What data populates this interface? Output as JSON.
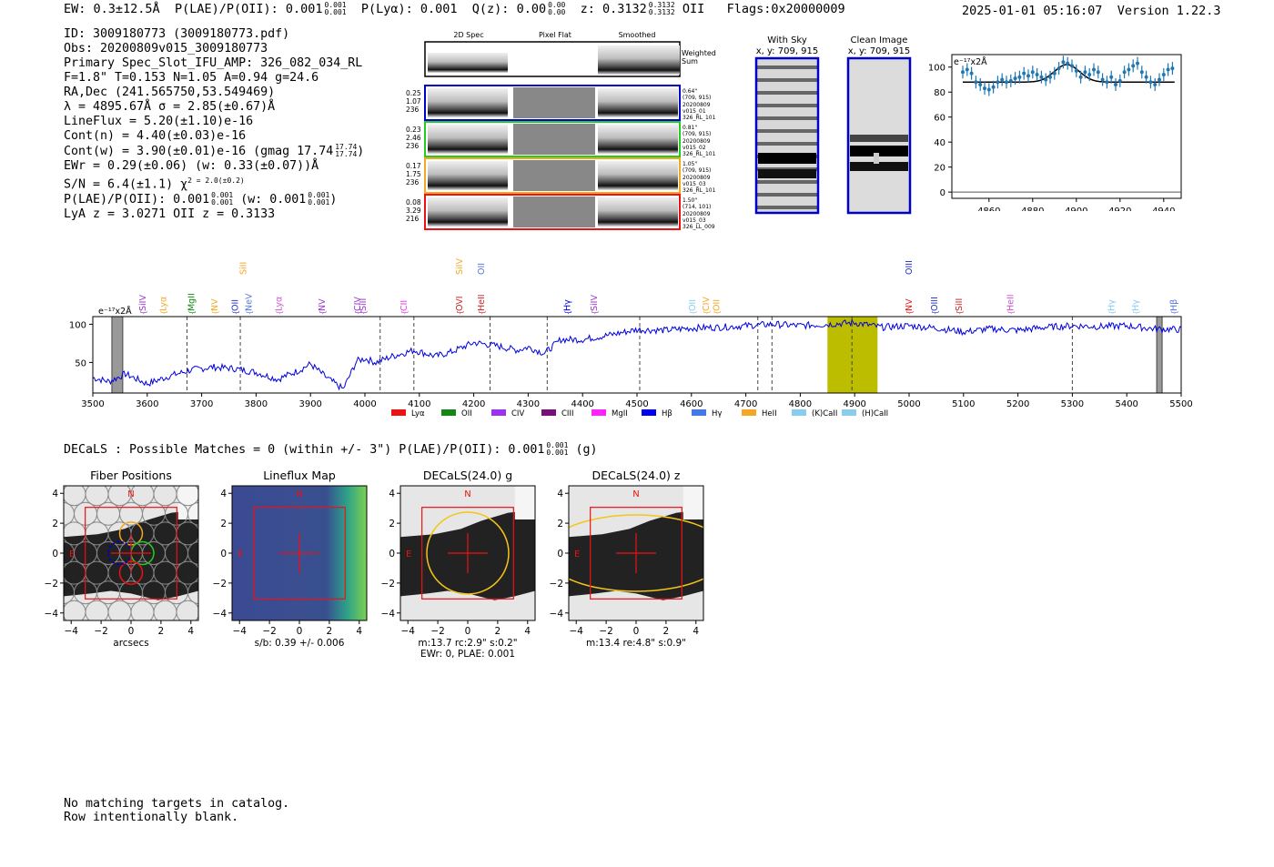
{
  "header": {
    "ew": "EW: 0.3±12.5Å",
    "plae_label": "P(LAE)/P(OII): 0.001",
    "plae_hi": "0.001",
    "plae_lo": "0.001",
    "plya_label": "P(Lyα): 0.001",
    "qz_label": "Q(z): 0.00",
    "qz_hi": "0.00",
    "qz_lo": "0.00",
    "z_label": "z: 0.3132",
    "z_hi": "0.3132",
    "z_lo": "0.3132",
    "z_type": "OII",
    "flags": "Flags:0x20000009",
    "timestamp": "2025-01-01 05:16:07",
    "version": "Version 1.22.3"
  },
  "info": {
    "id": "ID: 3009180773 (3009180773.pdf)",
    "obs": "Obs: 20200809v015_3009180773",
    "primary": "Primary Spec_Slot_IFU_AMP: 326_082_034_RL",
    "fit": "F=1.8\"  T=0.153  N=1.05  A=0.94  g=24.6",
    "radec": "RA,Dec (241.565750,53.549469)",
    "lambda": "λ = 4895.67Å  σ = 2.85(±0.67)Å",
    "lineflux": "LineFlux = 5.20(±1.10)e-16",
    "contn": "Cont(n) = 4.40(±0.03)e-16",
    "contw": "Cont(w) = 3.90(±0.01)e-16 (gmag 17.74",
    "contw_hi": "17.74",
    "contw_lo": "17.74",
    "ewr": "EWr = 0.29(±0.06) (w: 0.33(±0.07))Å",
    "sn": "S/N = 6.4(±1.1)  χ",
    "sn_chi": "2 = 2.0(±0.2)",
    "plae": "P(LAE)/P(OII): 0.001",
    "plae_w": "(w: 0.001",
    "plae_hi": "0.001",
    "plae_lo": "0.001",
    "lyaz": "LyA z = 3.0271  OII z = 0.3133"
  },
  "cutouts": {
    "col_2d": "2D Spec",
    "col_flat": "Pixel Flat",
    "col_smooth": "Smoothed",
    "weighted": "Weighted",
    "sum": "Sum",
    "rows": [
      {
        "v1": "0.25",
        "v2": "1.07",
        "v3": "236",
        "r1": "0.64\"",
        "r2": "(709, 915)",
        "r3": "20200809",
        "r4": "v015_01",
        "r5": "326_RL_101",
        "color": "#0000cc"
      },
      {
        "v1": "0.23",
        "v2": "2.46",
        "v3": "236",
        "r1": "0.81\"",
        "r2": "(709, 915)",
        "r3": "20200809",
        "r4": "v015_02",
        "r5": "326_RL_101",
        "color": "#22cc22"
      },
      {
        "v1": "0.17",
        "v2": "1.75",
        "v3": "236",
        "r1": "1.05\"",
        "r2": "(709, 915)",
        "r3": "20200809",
        "r4": "v015_03",
        "r5": "326_RL_101",
        "color": "#f5a623"
      },
      {
        "v1": "0.08",
        "v2": "3.29",
        "v3": "216",
        "r1": "1.50\"",
        "r2": "(714, 101)",
        "r3": "20200809",
        "r4": "v015_03",
        "r5": "326_LL_009",
        "color": "#ee1111"
      }
    ],
    "with_sky": "With Sky",
    "with_sky_xy": "x, y: 709, 915",
    "clean": "Clean Image",
    "clean_xy": "x, y: 709, 915"
  },
  "zoom_chart": {
    "unit": "e⁻¹⁷x2Å",
    "yticks": [
      "0",
      "20",
      "40",
      "60",
      "80",
      "100"
    ],
    "xticks": [
      "4860",
      "4880",
      "4900",
      "4920",
      "4940"
    ]
  },
  "chart_data": {
    "type": "line",
    "unit": "e⁻¹⁷x2Å",
    "xlim": [
      3500,
      5500
    ],
    "ylim": [
      10,
      110
    ],
    "yticks": [
      50,
      100
    ],
    "xticks": [
      3500,
      3600,
      3700,
      3800,
      3900,
      4000,
      4100,
      4200,
      4300,
      4400,
      4500,
      4600,
      4700,
      4800,
      4900,
      5000,
      5100,
      5200,
      5300,
      5400,
      5500
    ],
    "highlight_band": [
      4850,
      4942
    ],
    "line_markers": [
      3673,
      3771,
      4028,
      4090,
      4230,
      4335,
      4505,
      4722,
      4748,
      4895,
      5300
    ],
    "lines_low": [
      {
        "label": "SiIV",
        "x": 3590,
        "color": "#9933cc"
      },
      {
        "label": "Lyα",
        "x": 3628,
        "color": "#f5a623"
      },
      {
        "label": "MgII",
        "x": 3680,
        "color": "#118811"
      },
      {
        "label": "NV",
        "x": 3722,
        "color": "#f5a623"
      },
      {
        "label": "OII",
        "x": 3760,
        "color": "#2233cc"
      },
      {
        "label": "NeV",
        "x": 3785,
        "color": "#5577dd"
      },
      {
        "label": "Lyα",
        "x": 3840,
        "color": "#cc55cc"
      },
      {
        "label": "NV",
        "x": 3920,
        "color": "#9933cc"
      },
      {
        "label": "CIV",
        "x": 3985,
        "color": "#9933cc"
      },
      {
        "label": "SiII",
        "x": 3995,
        "color": "#9933cc"
      },
      {
        "label": "CII",
        "x": 4070,
        "color": "#ee33ee"
      },
      {
        "label": "OVI",
        "x": 4172,
        "color": "#cc2222"
      },
      {
        "label": "HeII",
        "x": 4212,
        "color": "#cc2222"
      },
      {
        "label": "Hγ",
        "x": 4370,
        "color": "#0000ee"
      },
      {
        "label": "SiIV",
        "x": 4420,
        "color": "#9933cc"
      },
      {
        "label": "OII",
        "x": 4600,
        "color": "#88ccee"
      },
      {
        "label": "CIV",
        "x": 4625,
        "color": "#f5a623"
      },
      {
        "label": "OII",
        "x": 4645,
        "color": "#f5a623"
      },
      {
        "label": "NV",
        "x": 4998,
        "color": "#ee1111"
      },
      {
        "label": "OIII",
        "x": 5045,
        "color": "#2233cc"
      },
      {
        "label": "SiII",
        "x": 5090,
        "color": "#cc2222"
      },
      {
        "label": "HeII",
        "x": 5185,
        "color": "#cc55cc"
      },
      {
        "label": "Hγ",
        "x": 5370,
        "color": "#88ccee"
      },
      {
        "label": "Hγ",
        "x": 5415,
        "color": "#88ccee"
      },
      {
        "label": "Hβ",
        "x": 5485,
        "color": "#5577dd"
      }
    ],
    "lines_high": [
      {
        "label": "SiII",
        "x": 3775,
        "color": "#f5a623"
      },
      {
        "label": "SiIV",
        "x": 4172,
        "color": "#f5a623"
      },
      {
        "label": "OII",
        "x": 4212,
        "color": "#5577dd"
      },
      {
        "label": "OIII",
        "x": 4998,
        "color": "#2233cc"
      }
    ],
    "legend": [
      {
        "label": "Lyα",
        "color": "#ee1111"
      },
      {
        "label": "OII",
        "color": "#118811"
      },
      {
        "label": "CIV",
        "color": "#9933ee"
      },
      {
        "label": "CIII",
        "color": "#771177"
      },
      {
        "label": "MgII",
        "color": "#ff22ff"
      },
      {
        "label": "Hβ",
        "color": "#0000ee"
      },
      {
        "label": "Hγ",
        "color": "#4477ee"
      },
      {
        "label": "HeII",
        "color": "#f5a623"
      },
      {
        "label": "(K)CaII",
        "color": "#88ccee"
      },
      {
        "label": "(H)CaII",
        "color": "#88ccee"
      }
    ],
    "spectrum_knots": [
      [
        3500,
        30
      ],
      [
        3530,
        25
      ],
      [
        3560,
        35
      ],
      [
        3600,
        22
      ],
      [
        3640,
        32
      ],
      [
        3680,
        40
      ],
      [
        3720,
        44
      ],
      [
        3760,
        42
      ],
      [
        3800,
        37
      ],
      [
        3840,
        28
      ],
      [
        3880,
        40
      ],
      [
        3900,
        48
      ],
      [
        3930,
        30
      ],
      [
        3960,
        15
      ],
      [
        3985,
        52
      ],
      [
        4000,
        55
      ],
      [
        4020,
        50
      ],
      [
        4050,
        58
      ],
      [
        4090,
        66
      ],
      [
        4130,
        58
      ],
      [
        4160,
        64
      ],
      [
        4200,
        76
      ],
      [
        4240,
        72
      ],
      [
        4280,
        66
      ],
      [
        4300,
        70
      ],
      [
        4330,
        62
      ],
      [
        4360,
        80
      ],
      [
        4400,
        80
      ],
      [
        4450,
        86
      ],
      [
        4500,
        93
      ],
      [
        4550,
        92
      ],
      [
        4600,
        95
      ],
      [
        4650,
        96
      ],
      [
        4700,
        98
      ],
      [
        4750,
        100
      ],
      [
        4800,
        98
      ],
      [
        4850,
        100
      ],
      [
        4900,
        102
      ],
      [
        4950,
        96
      ],
      [
        5000,
        98
      ],
      [
        5050,
        95
      ],
      [
        5100,
        90
      ],
      [
        5150,
        94
      ],
      [
        5200,
        92
      ],
      [
        5250,
        96
      ],
      [
        5300,
        98
      ],
      [
        5350,
        97
      ],
      [
        5400,
        98
      ],
      [
        5450,
        94
      ],
      [
        5500,
        93
      ]
    ]
  },
  "zoom_data": {
    "xlim": [
      4843,
      4948
    ],
    "ylim": [
      -5,
      110
    ],
    "points": [
      [
        4848,
        96
      ],
      [
        4850,
        98
      ],
      [
        4852,
        95
      ],
      [
        4854,
        88
      ],
      [
        4856,
        86
      ],
      [
        4858,
        83
      ],
      [
        4860,
        82
      ],
      [
        4862,
        84
      ],
      [
        4864,
        88
      ],
      [
        4866,
        90
      ],
      [
        4868,
        88
      ],
      [
        4870,
        89
      ],
      [
        4872,
        91
      ],
      [
        4874,
        92
      ],
      [
        4876,
        95
      ],
      [
        4878,
        93
      ],
      [
        4880,
        96
      ],
      [
        4882,
        94
      ],
      [
        4884,
        92
      ],
      [
        4886,
        90
      ],
      [
        4888,
        92
      ],
      [
        4890,
        95
      ],
      [
        4892,
        99
      ],
      [
        4894,
        104
      ],
      [
        4896,
        103
      ],
      [
        4898,
        101
      ],
      [
        4900,
        97
      ],
      [
        4902,
        92
      ],
      [
        4904,
        96
      ],
      [
        4906,
        94
      ],
      [
        4908,
        98
      ],
      [
        4910,
        96
      ],
      [
        4912,
        90
      ],
      [
        4914,
        88
      ],
      [
        4916,
        92
      ],
      [
        4918,
        86
      ],
      [
        4920,
        89
      ],
      [
        4922,
        96
      ],
      [
        4924,
        98
      ],
      [
        4926,
        101
      ],
      [
        4928,
        103
      ],
      [
        4930,
        96
      ],
      [
        4932,
        92
      ],
      [
        4934,
        88
      ],
      [
        4936,
        86
      ],
      [
        4938,
        90
      ],
      [
        4940,
        94
      ],
      [
        4942,
        98
      ],
      [
        4944,
        99
      ]
    ],
    "continuum": 88,
    "gauss_amp": 14,
    "gauss_center": 4895.67,
    "gauss_sigma": 2.85
  },
  "decals": {
    "line": "DECaLS : Possible Matches = 0 (within +/- 3\")  P(LAE)/P(OII): 0.001",
    "plae_hi": "0.001",
    "plae_lo": "0.001",
    "band": "(g)"
  },
  "stamps": [
    {
      "title": "Fiber Positions",
      "xlabel": "arcsecs",
      "xlabel2": "",
      "kind": "fiber"
    },
    {
      "title": "Lineflux Map",
      "xlabel": "s/b: 0.39 +/- 0.006",
      "xlabel2": "",
      "kind": "flux"
    },
    {
      "title": "DECaLS(24.0) g",
      "xlabel": "m:13.7 rc:2.9\"  s:0.2\"",
      "xlabel2": "EWr: 0, PLAE: 0.001",
      "kind": "g"
    },
    {
      "title": "DECaLS(24.0) z",
      "xlabel": "m:13.4  re:4.8\"  s:0.9\"",
      "xlabel2": "",
      "kind": "z"
    }
  ],
  "stamp_ticks": [
    "-4",
    "-2",
    "0",
    "2",
    "4"
  ],
  "compass": {
    "n": "N",
    "e": "E"
  },
  "footer": {
    "line1": "No matching targets in catalog.",
    "line2": "Row intentionally blank."
  }
}
